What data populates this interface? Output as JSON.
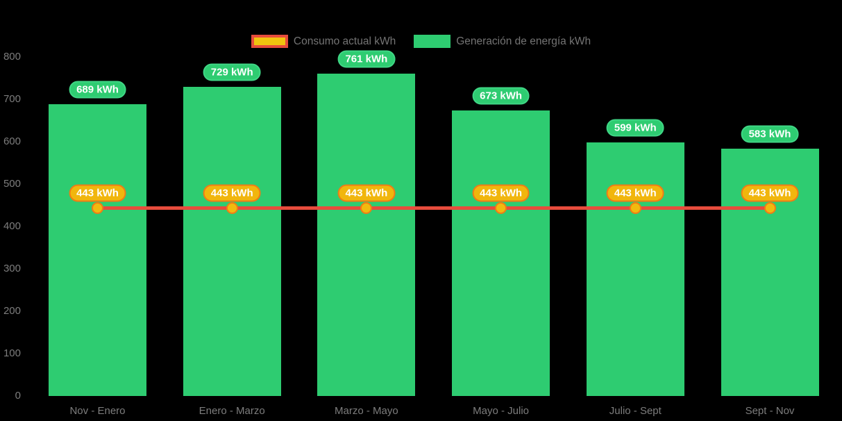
{
  "chart_data": {
    "type": "bar",
    "title": "",
    "xlabel": "",
    "ylabel": "",
    "categories": [
      "Nov - Enero",
      "Enero - Marzo",
      "Marzo - Mayo",
      "Mayo - Julio",
      "Julio - Sept",
      "Sept - Nov"
    ],
    "series": [
      {
        "name": "Consumo actual kWh",
        "type": "line",
        "values": [
          443,
          443,
          443,
          443,
          443,
          443
        ],
        "point_labels": [
          "443 kWh",
          "443 kWh",
          "443 kWh",
          "443 kWh",
          "443 kWh",
          "443 kWh"
        ],
        "line_color": "#e74c3c",
        "point_fill": "#f1ba0e",
        "point_border": "#ef7c16",
        "label_bg": "#f1b60d",
        "label_border": "#ef7c16",
        "label_text_color": "#ffffff"
      },
      {
        "name": "Generación de energía kWh",
        "type": "bar",
        "values": [
          689,
          729,
          761,
          673,
          599,
          583
        ],
        "point_labels": [
          "689 kWh",
          "729 kWh",
          "761 kWh",
          "673 kWh",
          "599 kWh",
          "583 kWh"
        ],
        "bar_color": "#2ecc71",
        "label_bg": "#2ecc71",
        "label_border": "#3fd685",
        "label_text_color": "#ffffff"
      }
    ],
    "ylim": [
      0,
      800
    ],
    "yticks": [
      0,
      100,
      200,
      300,
      400,
      500,
      600,
      700,
      800
    ],
    "grid": false,
    "legend_position": "top",
    "background_color": "#000000",
    "axis_text_color": "#7d7d7d",
    "legend_text_color": "#747474",
    "legend": [
      {
        "label": "Consumo actual kWh",
        "fill": "#f1c40f",
        "border": "#e74c3c",
        "border_width": 4
      },
      {
        "label": "Generación de energía kWh",
        "fill": "#2ecc71",
        "border": "#2ecc71",
        "border_width": 0
      }
    ]
  }
}
